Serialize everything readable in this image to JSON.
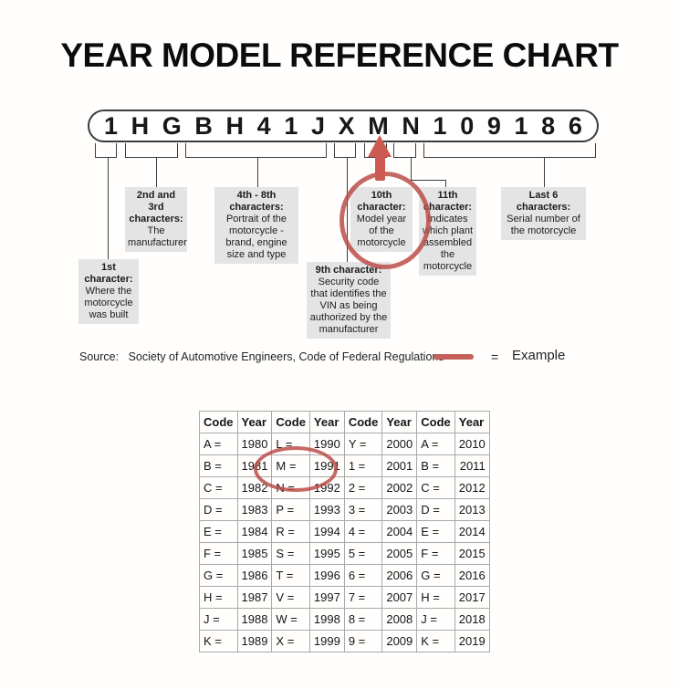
{
  "title": "YEAR MODEL REFERENCE CHART",
  "vin": {
    "characters": [
      "1",
      "H",
      "G",
      "B",
      "H",
      "4",
      "1",
      "J",
      "X",
      "M",
      "N",
      "1",
      "0",
      "9",
      "1",
      "8",
      "6"
    ]
  },
  "callouts": {
    "c1": {
      "heading": "1st character:",
      "body": "Where the motorcycle was built"
    },
    "c23": {
      "heading": "2nd and 3rd characters:",
      "body": "The manufacturer"
    },
    "c48": {
      "heading": "4th - 8th characters:",
      "body": "Portrait of the motorcycle - brand, engine size and type"
    },
    "c9": {
      "heading": "9th character:",
      "body": "Security code that identifies the VIN as being authorized by the manufacturer"
    },
    "c10": {
      "heading": "10th character:",
      "body": "Model year of the motorcycle"
    },
    "c11": {
      "heading": "11th character:",
      "body": "Indicates which plant assembled the motorcycle"
    },
    "c6": {
      "heading": "Last 6 characters:",
      "body": "Serial number of the motorcycle"
    }
  },
  "source": {
    "prefix": "Source:",
    "text": "Society of Automotive Engineers, Code of Federal Regulations"
  },
  "legend": {
    "equals": "=",
    "label": "Example"
  },
  "colors": {
    "example_red": "#c0504d",
    "label_bg": "#e4e4e4"
  },
  "table": {
    "headers": [
      "Code",
      "Year",
      "Code",
      "Year",
      "Code",
      "Year",
      "Code",
      "Year"
    ],
    "rows": [
      [
        "A =",
        "1980",
        "L =",
        "1990",
        "Y =",
        "2000",
        "A =",
        "2010"
      ],
      [
        "B =",
        "1981",
        "M =",
        "1991",
        "1 =",
        "2001",
        "B =",
        "2011"
      ],
      [
        "C =",
        "1982",
        "N =",
        "1992",
        "2 =",
        "2002",
        "C =",
        "2012"
      ],
      [
        "D =",
        "1983",
        "P =",
        "1993",
        "3 =",
        "2003",
        "D =",
        "2013"
      ],
      [
        "E =",
        "1984",
        "R =",
        "1994",
        "4 =",
        "2004",
        "E =",
        "2014"
      ],
      [
        "F =",
        "1985",
        "S =",
        "1995",
        "5 =",
        "2005",
        "F =",
        "2015"
      ],
      [
        "G =",
        "1986",
        "T =",
        "1996",
        "6 =",
        "2006",
        "G =",
        "2016"
      ],
      [
        "H =",
        "1987",
        "V =",
        "1997",
        "7 =",
        "2007",
        "H =",
        "2017"
      ],
      [
        "J =",
        "1988",
        "W =",
        "1998",
        "8 =",
        "2008",
        "J =",
        "2018"
      ],
      [
        "K =",
        "1989",
        "X =",
        "1999",
        "9 =",
        "2009",
        "K =",
        "2019"
      ]
    ]
  }
}
